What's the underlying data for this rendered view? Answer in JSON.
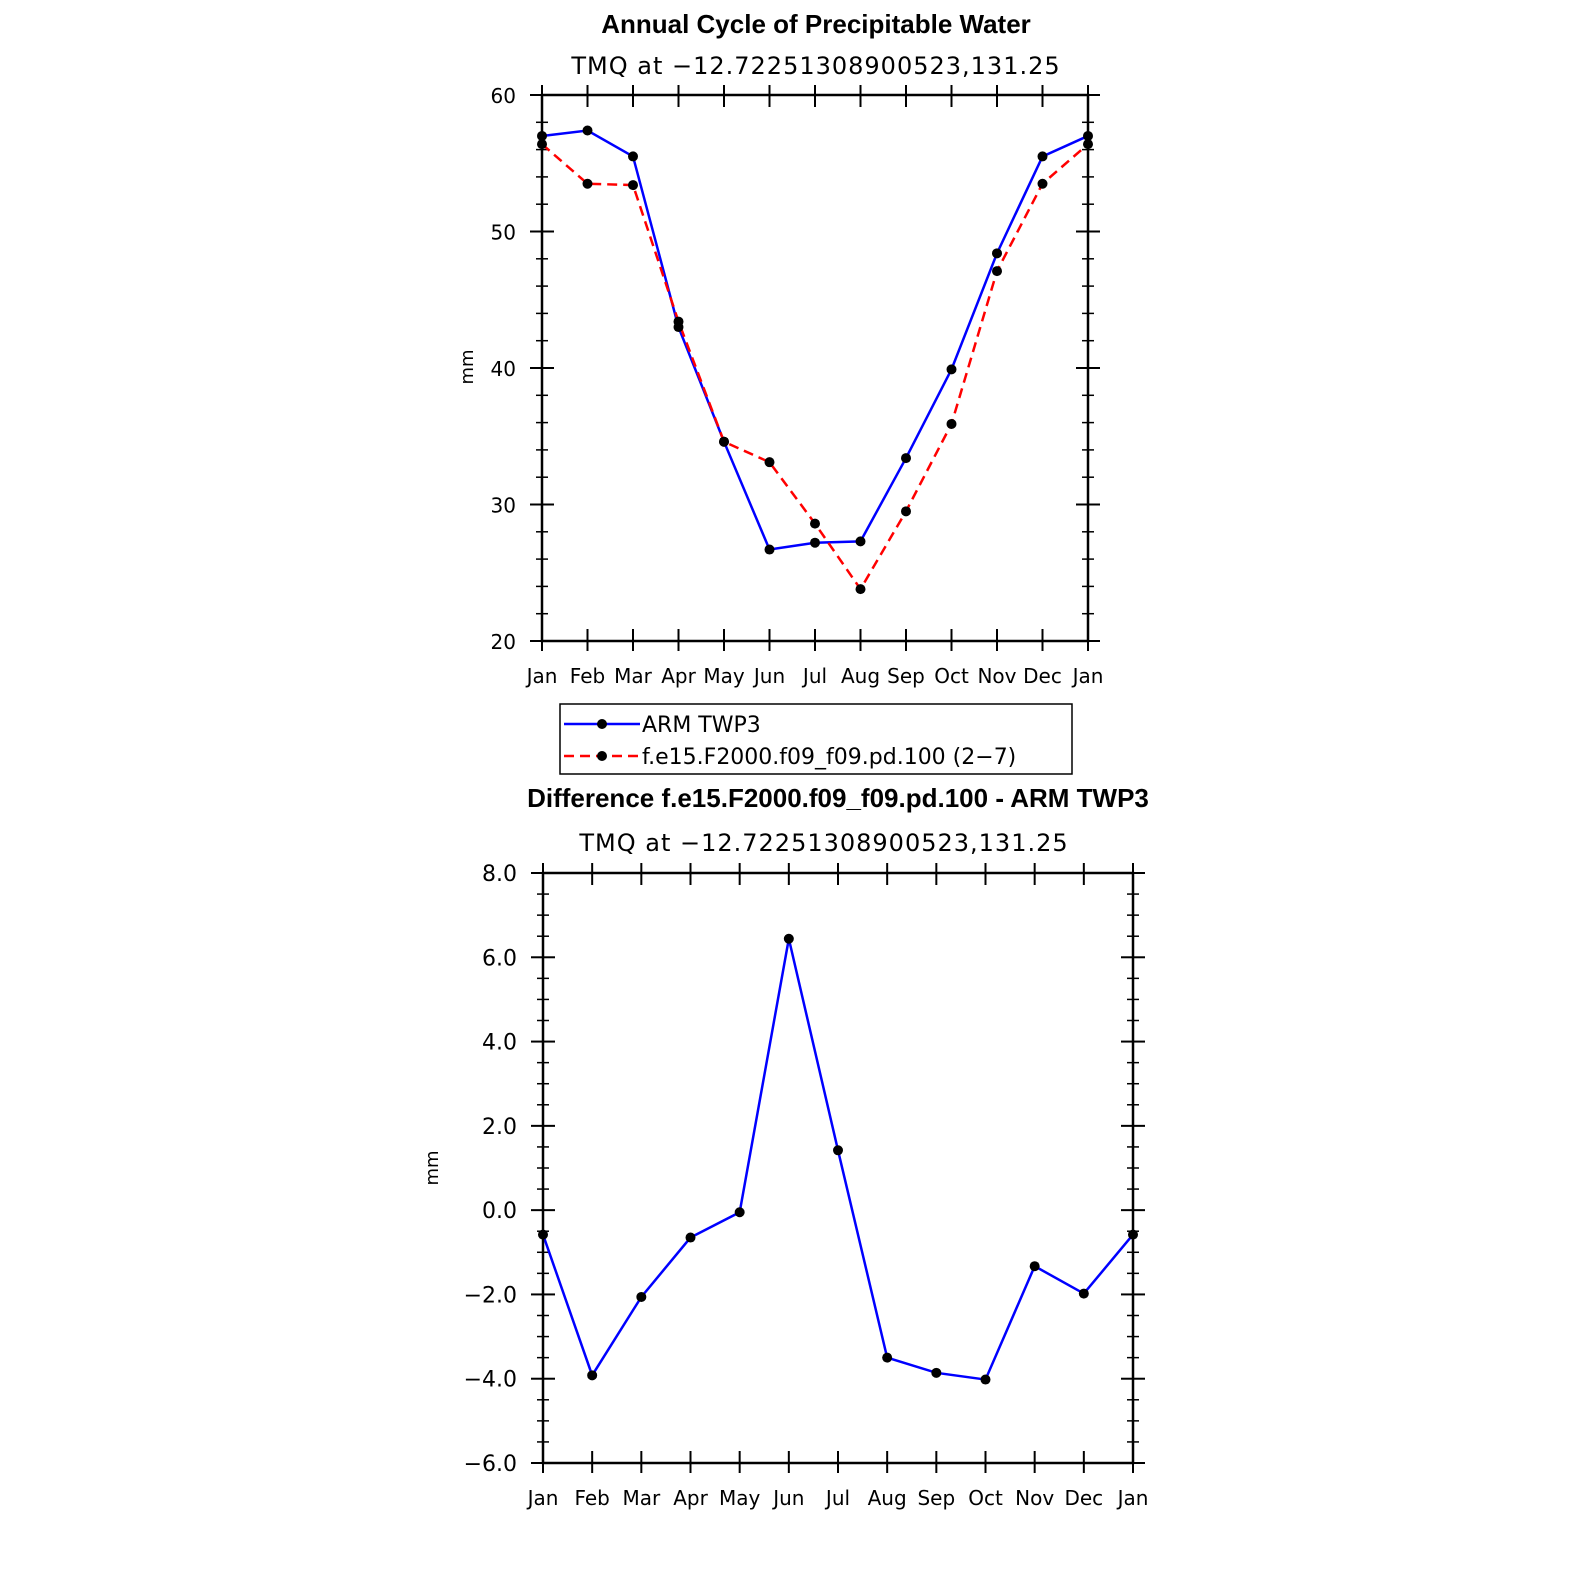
{
  "chart_data": [
    {
      "type": "line",
      "title": "Annual Cycle of Precipitable Water",
      "subtitle": "TMQ at −12.72251308900523,131.25",
      "ylabel": "mm",
      "ylim": [
        20,
        60
      ],
      "yticks": [
        "20",
        "30",
        "40",
        "50",
        "60"
      ],
      "categories": [
        "Jan",
        "Feb",
        "Mar",
        "Apr",
        "May",
        "Jun",
        "Jul",
        "Aug",
        "Sep",
        "Oct",
        "Nov",
        "Dec",
        "Jan"
      ],
      "series": [
        {
          "name": "ARM TWP3",
          "color": "#0000ff",
          "dash": "solid",
          "values": [
            57.0,
            57.4,
            55.5,
            43.0,
            34.6,
            26.7,
            27.2,
            27.3,
            33.4,
            39.9,
            48.4,
            55.5,
            57.0
          ]
        },
        {
          "name": "f.e15.F2000.f09_f09.pd.100 (2−7)",
          "color": "#ff0000",
          "dash": "dashed",
          "values": [
            56.4,
            53.5,
            53.4,
            43.4,
            34.6,
            33.1,
            28.6,
            23.8,
            29.5,
            35.9,
            47.1,
            53.5,
            56.4
          ]
        }
      ],
      "legend": {
        "position": "bottom-center",
        "entries": [
          "ARM TWP3",
          "f.e15.F2000.f09_f09.pd.100 (2−7)"
        ]
      }
    },
    {
      "type": "line",
      "title": "Difference f.e15.F2000.f09_f09.pd.100 - ARM TWP3",
      "subtitle": "TMQ at −12.72251308900523,131.25",
      "ylabel": "mm",
      "ylim": [
        -6,
        8
      ],
      "yticks": [
        "−6.0",
        "−4.0",
        "−2.0",
        "0.0",
        "2.0",
        "4.0",
        "6.0",
        "8.0"
      ],
      "categories": [
        "Jan",
        "Feb",
        "Mar",
        "Apr",
        "May",
        "Jun",
        "Jul",
        "Aug",
        "Sep",
        "Oct",
        "Nov",
        "Dec",
        "Jan"
      ],
      "series": [
        {
          "name": "Difference",
          "color": "#0000ff",
          "dash": "solid",
          "values": [
            -0.58,
            -3.92,
            -2.06,
            -0.65,
            -0.05,
            6.44,
            1.42,
            -3.5,
            -3.86,
            -4.02,
            -1.33,
            -1.98,
            -0.58
          ]
        }
      ]
    }
  ]
}
